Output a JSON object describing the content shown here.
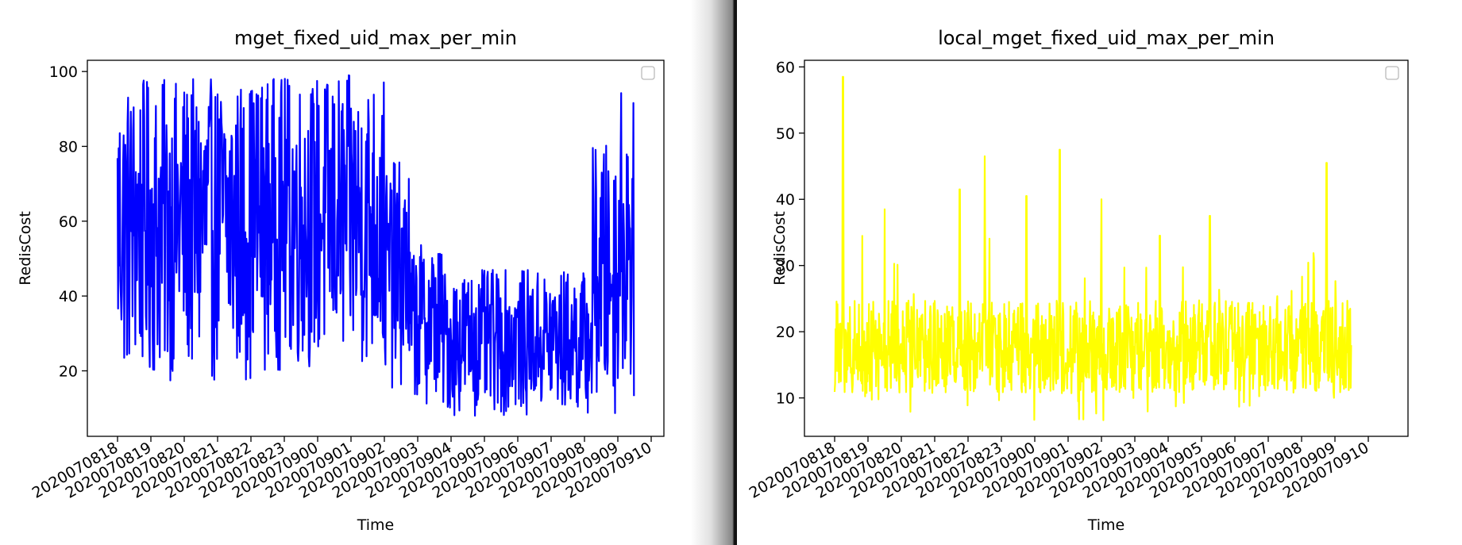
{
  "chart_data": [
    {
      "type": "line",
      "title": "mget_fixed_uid_max_per_min",
      "xlabel": "Time",
      "ylabel": "RedisCost",
      "ylim": [
        2.5,
        103
      ],
      "yticks": [
        20,
        40,
        60,
        80,
        100
      ],
      "xticks": [
        "2020070818",
        "2020070819",
        "2020070820",
        "2020070821",
        "2020070822",
        "2020070823",
        "2020070900",
        "2020070901",
        "2020070902",
        "2020070903",
        "2020070904",
        "2020070905",
        "2020070906",
        "2020070907",
        "2020070908",
        "2020070909",
        "2020070910"
      ],
      "legend": "top-right (empty)",
      "grid": false,
      "color": "#0000ff",
      "series": [
        {
          "segments": [
            {
              "x_range": [
                "2020070818 00:00",
                "2020070819 12:00"
              ],
              "low": 17,
              "high": 98
            },
            {
              "x_range": [
                "2020070819 12:00",
                "2020070822 00:00"
              ],
              "low": 17,
              "high": 98
            },
            {
              "x_range": [
                "2020070822 00:00",
                "2020070902 00:00"
              ],
              "low": 20,
              "high": 99
            },
            {
              "x_range": [
                "2020070902 00:00",
                "2020070902 18:00"
              ],
              "low": 15,
              "high": 76
            },
            {
              "x_range": [
                "2020070902 18:00",
                "2020070903 18:00"
              ],
              "low": 11,
              "high": 54
            },
            {
              "x_range": [
                "2020070903 18:00",
                "2020070908 06:00"
              ],
              "low": 8,
              "high": 47
            },
            {
              "x_range": [
                "2020070908 06:00",
                "2020070909 00:00"
              ],
              "low": 8,
              "high": 81
            },
            {
              "x_range": [
                "2020070909 00:00",
                "2020070909 12:00"
              ],
              "low": 12,
              "high": 96
            }
          ]
        }
      ]
    },
    {
      "type": "line",
      "title": "local_mget_fixed_uid_max_per_min",
      "xlabel": "Time",
      "ylabel": "RedisCost",
      "ylim": [
        4.2,
        61
      ],
      "yticks": [
        10,
        20,
        30,
        40,
        50,
        60
      ],
      "xticks": [
        "2020070818",
        "2020070819",
        "2020070820",
        "2020070821",
        "2020070822",
        "2020070823",
        "2020070900",
        "2020070901",
        "2020070902",
        "2020070903",
        "2020070904",
        "2020070905",
        "2020070906",
        "2020070907",
        "2020070908",
        "2020070909",
        "2020070910"
      ],
      "legend": "top-right (empty)",
      "grid": false,
      "color": "#ffff00",
      "series": [
        {
          "baseline": 17,
          "low": 6.5,
          "high": 58.5,
          "peaks": [
            {
              "x": "2020070818 06:00",
              "y": 58.5
            },
            {
              "x": "2020070819 12:00",
              "y": 38.5
            },
            {
              "x": "2020070821 18:00",
              "y": 41.5
            },
            {
              "x": "2020070822 12:00",
              "y": 46.5
            },
            {
              "x": "2020070823 18:00",
              "y": 40.5
            },
            {
              "x": "2020070900 18:00",
              "y": 47.5
            },
            {
              "x": "2020070902 00:00",
              "y": 40
            },
            {
              "x": "2020070903 18:00",
              "y": 34.5
            },
            {
              "x": "2020070905 06:00",
              "y": 37.5
            },
            {
              "x": "2020070908 18:00",
              "y": 45.5
            },
            {
              "x": "2020070909 12:00",
              "y": 35
            }
          ]
        }
      ]
    }
  ]
}
